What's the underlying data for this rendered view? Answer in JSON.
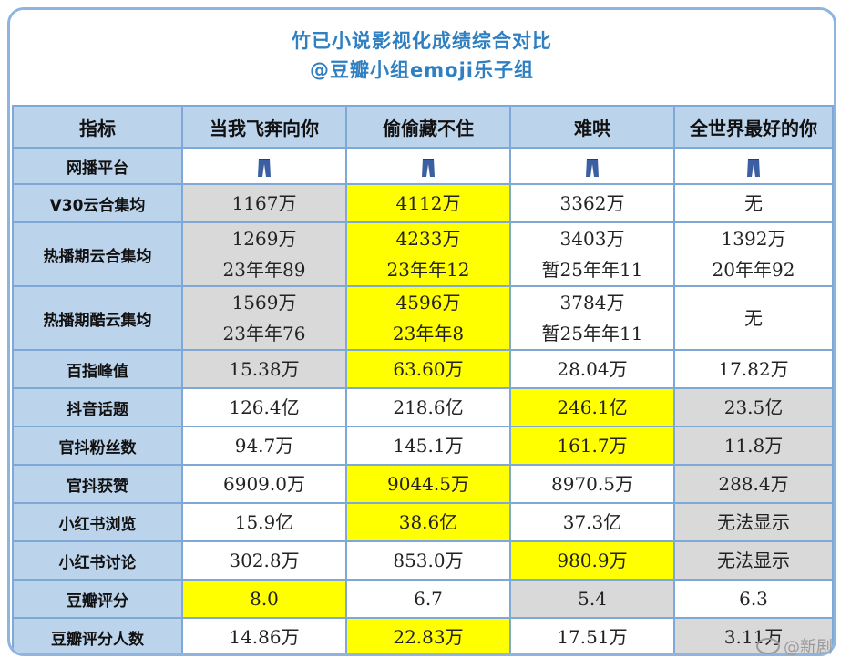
{
  "title": {
    "line1": "竹已小说影视化成绩综合对比",
    "line2": "@豆瓣小组emoji乐子组"
  },
  "headers": [
    "指标",
    "当我飞奔向你",
    "偷偷藏不住",
    "难哄",
    "全世界最好的你"
  ],
  "rows": [
    {
      "label": "网播平台",
      "cells": [
        {
          "icon": "jeans-icon",
          "bg": "none"
        },
        {
          "icon": "jeans-icon",
          "bg": "none"
        },
        {
          "icon": "jeans-icon",
          "bg": "none"
        },
        {
          "icon": "jeans-icon",
          "bg": "none"
        }
      ]
    },
    {
      "label": "V30云合集均",
      "cells": [
        {
          "lines": [
            "1167万"
          ],
          "bg": "gray"
        },
        {
          "lines": [
            "4112万"
          ],
          "bg": "yellow"
        },
        {
          "lines": [
            "3362万"
          ],
          "bg": "none"
        },
        {
          "lines": [
            "无"
          ],
          "bg": "none"
        }
      ]
    },
    {
      "label": "热播期云合集均",
      "cells": [
        {
          "lines": [
            "1269万",
            "23年年89"
          ],
          "bg": "gray"
        },
        {
          "lines": [
            "4233万",
            "23年年12"
          ],
          "bg": "yellow"
        },
        {
          "lines": [
            "3403万",
            "暂25年年11"
          ],
          "bg": "none"
        },
        {
          "lines": [
            "1392万",
            "20年年92"
          ],
          "bg": "none"
        }
      ]
    },
    {
      "label": "热播期酷云集均",
      "cells": [
        {
          "lines": [
            "1569万",
            "23年年76"
          ],
          "bg": "gray"
        },
        {
          "lines": [
            "4596万",
            "23年年8"
          ],
          "bg": "yellow"
        },
        {
          "lines": [
            "3784万",
            "暂25年年11"
          ],
          "bg": "none"
        },
        {
          "lines": [
            "无"
          ],
          "bg": "none"
        }
      ]
    },
    {
      "label": "百指峰值",
      "cells": [
        {
          "lines": [
            "15.38万"
          ],
          "bg": "gray"
        },
        {
          "lines": [
            "63.60万"
          ],
          "bg": "yellow"
        },
        {
          "lines": [
            "28.04万"
          ],
          "bg": "none"
        },
        {
          "lines": [
            "17.82万"
          ],
          "bg": "none"
        }
      ]
    },
    {
      "label": "抖音话题",
      "cells": [
        {
          "lines": [
            "126.4亿"
          ],
          "bg": "none"
        },
        {
          "lines": [
            "218.6亿"
          ],
          "bg": "none"
        },
        {
          "lines": [
            "246.1亿"
          ],
          "bg": "yellow"
        },
        {
          "lines": [
            "23.5亿"
          ],
          "bg": "gray"
        }
      ]
    },
    {
      "label": "官抖粉丝数",
      "cells": [
        {
          "lines": [
            "94.7万"
          ],
          "bg": "none"
        },
        {
          "lines": [
            "145.1万"
          ],
          "bg": "none"
        },
        {
          "lines": [
            "161.7万"
          ],
          "bg": "yellow"
        },
        {
          "lines": [
            "11.8万"
          ],
          "bg": "gray"
        }
      ]
    },
    {
      "label": "官抖获赞",
      "cells": [
        {
          "lines": [
            "6909.0万"
          ],
          "bg": "none"
        },
        {
          "lines": [
            "9044.5万"
          ],
          "bg": "yellow"
        },
        {
          "lines": [
            "8970.5万"
          ],
          "bg": "none"
        },
        {
          "lines": [
            "288.4万"
          ],
          "bg": "gray"
        }
      ]
    },
    {
      "label": "小红书浏览",
      "cells": [
        {
          "lines": [
            "15.9亿"
          ],
          "bg": "none"
        },
        {
          "lines": [
            "38.6亿"
          ],
          "bg": "yellow"
        },
        {
          "lines": [
            "37.3亿"
          ],
          "bg": "none"
        },
        {
          "lines": [
            "无法显示"
          ],
          "bg": "gray"
        }
      ]
    },
    {
      "label": "小红书讨论",
      "cells": [
        {
          "lines": [
            "302.8万"
          ],
          "bg": "none"
        },
        {
          "lines": [
            "853.0万"
          ],
          "bg": "none"
        },
        {
          "lines": [
            "980.9万"
          ],
          "bg": "yellow"
        },
        {
          "lines": [
            "无法显示"
          ],
          "bg": "gray"
        }
      ]
    },
    {
      "label": "豆瓣评分",
      "cells": [
        {
          "lines": [
            "8.0"
          ],
          "bg": "yellow"
        },
        {
          "lines": [
            "6.7"
          ],
          "bg": "none"
        },
        {
          "lines": [
            "5.4"
          ],
          "bg": "gray"
        },
        {
          "lines": [
            "6.3"
          ],
          "bg": "none"
        }
      ]
    },
    {
      "label": "豆瓣评分人数",
      "cells": [
        {
          "lines": [
            "14.86万"
          ],
          "bg": "none"
        },
        {
          "lines": [
            "22.83万"
          ],
          "bg": "yellow"
        },
        {
          "lines": [
            "17.51万"
          ],
          "bg": "none"
        },
        {
          "lines": [
            "3.11万"
          ],
          "bg": "gray"
        }
      ]
    }
  ],
  "watermark": "@新剧",
  "colors": {
    "title": "#2f7fc1",
    "header_bg": "#bcd3ec",
    "highlight_best": "#ffff00",
    "highlight_worst": "#d9d9d9",
    "border": "#7ea8d8",
    "jeans": "#3b5fa0"
  }
}
